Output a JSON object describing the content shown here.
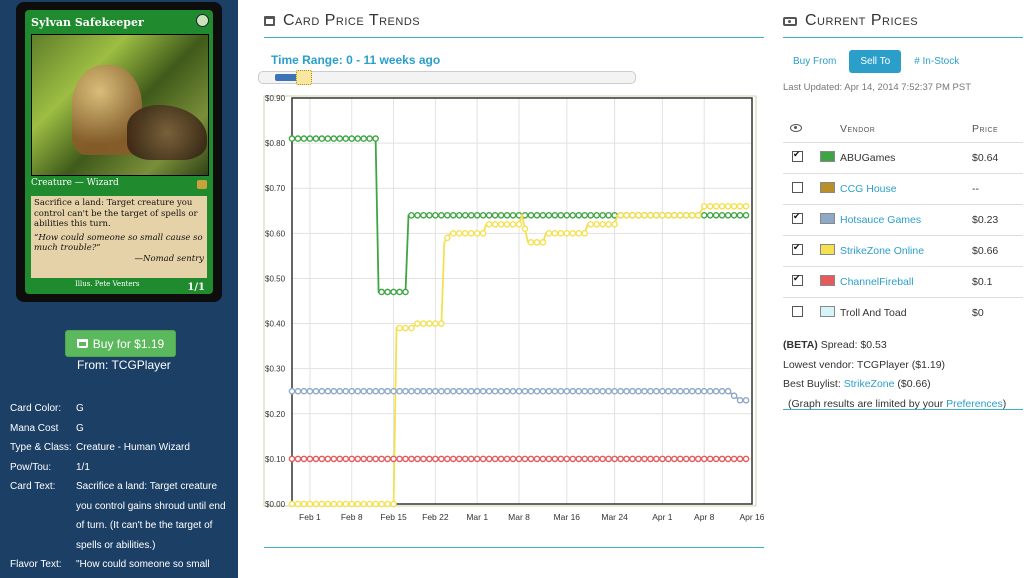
{
  "card": {
    "name": "Sylvan Safekeeper",
    "type_line": "Creature — Wizard",
    "rules_text": "Sacrifice a land: Target creature you control can't be the target of spells or abilities this turn.",
    "flavor": "“How could someone so small cause so much trouble?”",
    "flavor_attribution": "—Nomad sentry",
    "illustrator": "Illus. Pete Venters",
    "power_toughness": "1/1"
  },
  "buy": {
    "label": "Buy for $1.19",
    "from": "From: TCGPlayer"
  },
  "details": [
    {
      "label": "Card Color:",
      "value": "G"
    },
    {
      "label": "Mana Cost",
      "value": "G"
    },
    {
      "label": "Type & Class:",
      "value": "Creature - Human Wizard"
    },
    {
      "label": "Pow/Tou:",
      "value": "1/1"
    },
    {
      "label": "Card Text:",
      "value": "Sacrifice a land: Target creature you control gains shroud until end of turn. (It can't be the target of spells or abilities.)"
    },
    {
      "label": "Flavor Text:",
      "value": "\"How could someone so small"
    }
  ],
  "trends": {
    "title": "Card Price Trends",
    "time_range": "Time Range: 0 - 11 weeks ago",
    "slider_fraction": 0.08
  },
  "prices": {
    "title": "Current Prices",
    "tabs": [
      "Buy From",
      "Sell To",
      "# In-Stock"
    ],
    "active_tab": "Sell To",
    "updated": "Last Updated: Apr 14, 2014 7:52:37 PM PST",
    "vendor_header": "Vendor",
    "price_header": "Price",
    "vendors": [
      {
        "name": "ABUGames",
        "price": "$0.64",
        "checked": true,
        "color": "#3fa544",
        "link": false
      },
      {
        "name": "CCG House",
        "price": "--",
        "checked": false,
        "color": "#b98f2b",
        "link": true
      },
      {
        "name": "Hotsauce Games",
        "price": "$0.23",
        "checked": true,
        "color": "#8ea9c8",
        "link": true
      },
      {
        "name": "StrikeZone Online",
        "price": "$0.66",
        "checked": true,
        "color": "#f5e050",
        "link": true
      },
      {
        "name": "ChannelFireball",
        "price": "$0.1",
        "checked": true,
        "color": "#e55b5b",
        "link": true
      },
      {
        "name": "Troll And Toad",
        "price": "$0",
        "checked": false,
        "color": "#d6f4f8",
        "link": false
      }
    ],
    "spread_label": "(BETA)",
    "spread_text": " Spread: $0.53",
    "lowest_vendor": "Lowest vendor: TCGPlayer ($1.19)",
    "best_buylist_prefix": "Best Buylist: ",
    "best_buylist_link": "StrikeZone",
    "best_buylist_suffix": " ($0.66)",
    "graph_note_prefix": "(Graph results are limited by your ",
    "graph_note_link": "Preferences",
    "graph_note_suffix": ")"
  },
  "chart_data": {
    "type": "line",
    "x_ticks": [
      "Feb 1",
      "Feb 8",
      "Feb 15",
      "Feb 22",
      "Mar 1",
      "Mar 8",
      "Mar 16",
      "Mar 24",
      "Apr 1",
      "Apr 8",
      "Apr 16"
    ],
    "x_tick_days": [
      3,
      10,
      17,
      24,
      31,
      38,
      46,
      54,
      62,
      69,
      77
    ],
    "x_range": [
      0,
      77
    ],
    "y_ticks": [
      "$0.00",
      "$0.10",
      "$0.20",
      "$0.30",
      "$0.40",
      "$0.50",
      "$0.60",
      "$0.70",
      "$0.80",
      "$0.90"
    ],
    "ylim": [
      0,
      0.9
    ],
    "grid": true,
    "series": [
      {
        "name": "ABUGames",
        "color": "#3fa544",
        "points": [
          [
            0,
            0.81
          ],
          [
            14,
            0.81
          ],
          [
            14.5,
            0.47
          ],
          [
            19,
            0.47
          ],
          [
            19.5,
            0.64
          ],
          [
            76,
            0.64
          ]
        ]
      },
      {
        "name": "StrikeZone Online",
        "color": "#f5e050",
        "points": [
          [
            0,
            0
          ],
          [
            17,
            0
          ],
          [
            17.5,
            0.39
          ],
          [
            20,
            0.39
          ],
          [
            21,
            0.4
          ],
          [
            25,
            0.4
          ],
          [
            25.5,
            0.58
          ],
          [
            26.5,
            0.6
          ],
          [
            30,
            0.6
          ],
          [
            32,
            0.6
          ],
          [
            32.5,
            0.62
          ],
          [
            38,
            0.62
          ],
          [
            38.5,
            0.64
          ],
          [
            39.5,
            0.58
          ],
          [
            42,
            0.58
          ],
          [
            42.5,
            0.6
          ],
          [
            49,
            0.6
          ],
          [
            49.5,
            0.62
          ],
          [
            54,
            0.62
          ],
          [
            54.5,
            0.64
          ],
          [
            68,
            0.64
          ],
          [
            69,
            0.66
          ],
          [
            76,
            0.66
          ]
        ]
      },
      {
        "name": "Hotsauce Games",
        "color": "#8ea9c8",
        "points": [
          [
            0,
            0.25
          ],
          [
            73,
            0.25
          ],
          [
            75,
            0.23
          ],
          [
            76,
            0.23
          ]
        ]
      },
      {
        "name": "ChannelFireball",
        "color": "#e55b5b",
        "points": [
          [
            0,
            0.1
          ],
          [
            76,
            0.1
          ]
        ]
      }
    ]
  }
}
